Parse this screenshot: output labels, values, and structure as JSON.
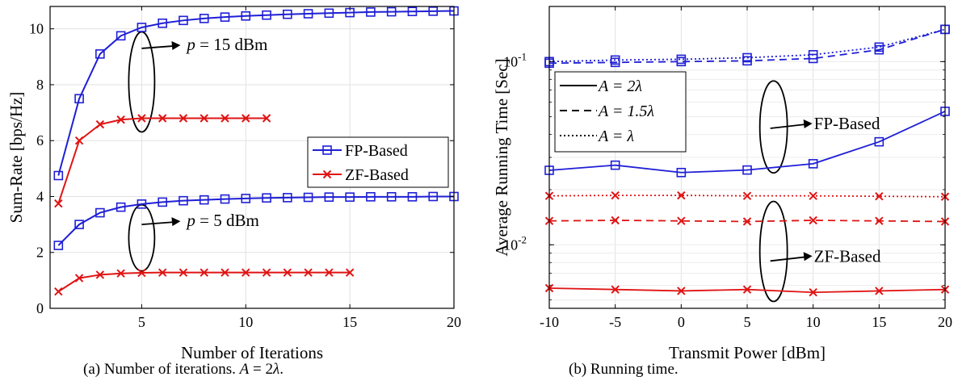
{
  "chart_data": [
    {
      "type": "line",
      "caption_prefix": "(a)  Number of iterations. ",
      "caption_math": "A",
      "caption_mid": " = 2",
      "caption_lambda": "λ",
      "caption_end": ".",
      "xlabel": "Number of Iterations",
      "ylabel": "Sum-Rate [bps/Hz]",
      "xlim": [
        0.6,
        20
      ],
      "ylim": [
        0,
        10.8
      ],
      "xticks": [
        5,
        10,
        15,
        20
      ],
      "yticks": [
        0,
        2,
        4,
        6,
        8,
        10
      ],
      "grid": true,
      "legend_position": "center-right",
      "series": [
        {
          "name": "FP-Based",
          "key": "fp15",
          "color": "#1f1fd6",
          "marker": "square",
          "dash": "solid",
          "in_legend": true,
          "x": [
            1,
            2,
            3,
            4,
            5,
            6,
            7,
            8,
            9,
            10,
            11,
            12,
            13,
            14,
            15,
            16,
            17,
            18,
            19,
            20
          ],
          "y": [
            4.75,
            7.5,
            9.1,
            9.75,
            10.05,
            10.2,
            10.3,
            10.37,
            10.42,
            10.46,
            10.49,
            10.52,
            10.54,
            10.56,
            10.58,
            10.6,
            10.61,
            10.62,
            10.63,
            10.64
          ]
        },
        {
          "name": "ZF-Based",
          "key": "zf15",
          "color": "#e01414",
          "marker": "x",
          "dash": "solid",
          "in_legend": true,
          "x": [
            1,
            2,
            3,
            4,
            5,
            6,
            7,
            8,
            9,
            10,
            11
          ],
          "y": [
            3.75,
            6.0,
            6.58,
            6.75,
            6.8,
            6.8,
            6.8,
            6.8,
            6.8,
            6.8,
            6.8
          ]
        },
        {
          "name": "",
          "key": "fp5",
          "color": "#1f1fd6",
          "marker": "square",
          "dash": "solid",
          "in_legend": false,
          "x": [
            1,
            2,
            3,
            4,
            5,
            6,
            7,
            8,
            9,
            10,
            11,
            12,
            13,
            14,
            15,
            16,
            17,
            18,
            19,
            20
          ],
          "y": [
            2.25,
            3.0,
            3.42,
            3.62,
            3.73,
            3.8,
            3.85,
            3.88,
            3.91,
            3.93,
            3.95,
            3.96,
            3.97,
            3.98,
            3.98,
            3.99,
            3.99,
            3.99,
            4.0,
            4.0
          ]
        },
        {
          "name": "",
          "key": "zf5",
          "color": "#e01414",
          "marker": "x",
          "dash": "solid",
          "in_legend": false,
          "x": [
            1,
            2,
            3,
            4,
            5,
            6,
            7,
            8,
            9,
            10,
            11,
            12,
            13,
            14,
            15
          ],
          "y": [
            0.6,
            1.08,
            1.2,
            1.25,
            1.27,
            1.28,
            1.28,
            1.28,
            1.28,
            1.28,
            1.28,
            1.28,
            1.28,
            1.28,
            1.28
          ]
        }
      ],
      "annotations": [
        {
          "var": "p",
          "text": " = 15 dBm",
          "at_x": 5,
          "at_y": 9.3
        },
        {
          "var": "p",
          "text": " = 5 dBm",
          "at_x": 5,
          "at_y": 3.0
        }
      ]
    },
    {
      "type": "line",
      "caption": "(b)  Running time.",
      "xlabel": "Transmit Power [dBm]",
      "ylabel": "Average Running Time [Sec]",
      "xlim": [
        -10,
        20
      ],
      "ylim": [
        0.0045,
        0.2
      ],
      "yscale": "log",
      "xticks": [
        -10,
        -5,
        0,
        5,
        10,
        15,
        20
      ],
      "xtick_labels": [
        "-10",
        "-5",
        "0",
        "5",
        "10",
        "15",
        "20"
      ],
      "yticks": [
        {
          "value": 0.01,
          "base": "10",
          "exp": "-2"
        },
        {
          "value": 0.1,
          "base": "10",
          "exp": "-1"
        }
      ],
      "grid": true,
      "legend_position": "top-left",
      "legend": [
        {
          "label_var": "A",
          "label_mid": " = 2",
          "label_end": "λ",
          "dash": "solid"
        },
        {
          "label_var": "A",
          "label_mid": " = 1.5",
          "label_end": "λ",
          "dash": "dashed"
        },
        {
          "label_var": "A",
          "label_mid": " = ",
          "label_end": "λ",
          "dash": "dotted"
        }
      ],
      "series": [
        {
          "name": "A = 2λ, FP-Based",
          "key": "fp2",
          "color": "#1f1fd6",
          "marker": "square",
          "dash": "solid",
          "x": [
            -10,
            -5,
            0,
            5,
            10,
            15,
            20
          ],
          "y": [
            0.0255,
            0.0272,
            0.0248,
            0.0256,
            0.0277,
            0.0365,
            0.0535
          ]
        },
        {
          "name": "A = 1.5λ, FP-Based",
          "key": "fp15",
          "color": "#1f1fd6",
          "marker": "square",
          "dash": "dashed",
          "x": [
            -10,
            -5,
            0,
            5,
            10,
            15,
            20
          ],
          "y": [
            0.098,
            0.099,
            0.1,
            0.101,
            0.104,
            0.116,
            0.15
          ]
        },
        {
          "name": "A = λ, FP-Based",
          "key": "fp1",
          "color": "#1f1fd6",
          "marker": "square",
          "dash": "dotted",
          "x": [
            -10,
            -5,
            0,
            5,
            10,
            15,
            20
          ],
          "y": [
            0.1,
            0.102,
            0.103,
            0.105,
            0.109,
            0.12,
            0.15
          ]
        },
        {
          "name": "A = 2λ, ZF-Based",
          "key": "zf2",
          "color": "#e01414",
          "marker": "x",
          "dash": "solid",
          "x": [
            -10,
            -5,
            0,
            5,
            10,
            15,
            20
          ],
          "y": [
            0.0058,
            0.0057,
            0.0056,
            0.0057,
            0.0055,
            0.0056,
            0.0057
          ]
        },
        {
          "name": "A = 1.5λ, ZF-Based",
          "key": "zf15",
          "color": "#e01414",
          "marker": "x",
          "dash": "dashed",
          "x": [
            -10,
            -5,
            0,
            5,
            10,
            15,
            20
          ],
          "y": [
            0.0135,
            0.0136,
            0.0135,
            0.0134,
            0.0136,
            0.0135,
            0.0134
          ]
        },
        {
          "name": "A = λ, ZF-Based",
          "key": "zf1",
          "color": "#e01414",
          "marker": "x",
          "dash": "dotted",
          "x": [
            -10,
            -5,
            0,
            5,
            10,
            15,
            20
          ],
          "y": [
            0.0185,
            0.0186,
            0.0186,
            0.0185,
            0.0185,
            0.0184,
            0.0183
          ]
        }
      ],
      "annotations": [
        {
          "text": "FP-Based",
          "at_x": 7,
          "at_y": 0.045
        },
        {
          "text": "ZF-Based",
          "at_x": 7,
          "at_y": 0.0085
        }
      ]
    }
  ]
}
